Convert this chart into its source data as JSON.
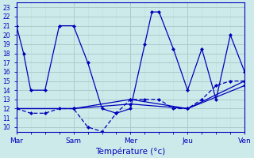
{
  "xlabel": "Température (°c)",
  "background_color": "#cdeaea",
  "line_color": "#0000bb",
  "grid_major_color": "#aacccc",
  "grid_minor_color": "#c0dddd",
  "xlim": [
    0,
    16
  ],
  "ylim": [
    9.5,
    23.5
  ],
  "yticks": [
    10,
    11,
    12,
    13,
    14,
    15,
    16,
    17,
    18,
    19,
    20,
    21,
    22,
    23
  ],
  "day_labels": [
    "Mar",
    "Sam",
    "Mer",
    "Jeu",
    "Ven"
  ],
  "day_positions": [
    0,
    4,
    8,
    12,
    16
  ],
  "series": [
    {
      "x": [
        0,
        0.5,
        1,
        2,
        3,
        4,
        5,
        6,
        7,
        8,
        9,
        9.5,
        10,
        11,
        12,
        13,
        14,
        15,
        16
      ],
      "y": [
        21,
        18,
        14,
        14,
        21,
        21,
        17,
        12,
        11.5,
        12,
        19,
        22.5,
        22.5,
        18.5,
        14,
        18.5,
        13,
        20,
        16
      ],
      "style": "solid",
      "marker": true
    },
    {
      "x": [
        0,
        1,
        2,
        3,
        4,
        5,
        6,
        7,
        8,
        9,
        10,
        11,
        12,
        13,
        14,
        15,
        16
      ],
      "y": [
        12,
        11.5,
        11.5,
        12,
        12,
        10,
        9.5,
        11.5,
        13,
        13,
        13,
        12,
        12,
        13,
        14.5,
        15,
        15
      ],
      "style": "dashed",
      "marker": true
    },
    {
      "x": [
        0,
        4,
        8,
        12,
        16
      ],
      "y": [
        12,
        12,
        13,
        12,
        14.5
      ],
      "style": "solid",
      "marker": true
    },
    {
      "x": [
        0,
        4,
        8,
        12,
        16
      ],
      "y": [
        12,
        12,
        12.5,
        12,
        15
      ],
      "style": "solid",
      "marker": true
    }
  ]
}
